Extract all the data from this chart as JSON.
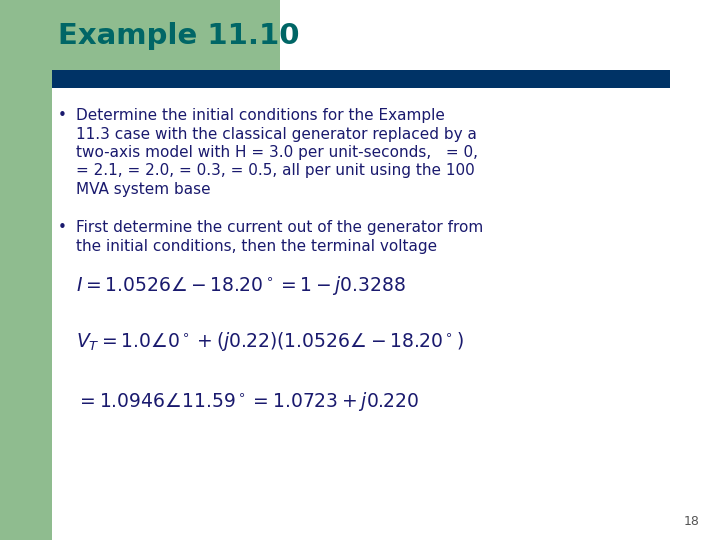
{
  "title": "Example 11.10",
  "title_color": "#006666",
  "title_bg_color": "#8FBC8F",
  "bar_color": "#003366",
  "bg_color": "#FFFFFF",
  "left_bar_color": "#8FBC8F",
  "bullet1_lines": [
    "Determine the initial conditions for the Example",
    "11.3 case with the classical generator replaced by a",
    "two-axis model with H = 3.0 per unit-seconds,   = 0,",
    "= 2.1, = 2.0, = 0.3, = 0.5, all per unit using the 100",
    "MVA system base"
  ],
  "bullet2_lines": [
    "First determine the current out of the generator from",
    "the initial conditions, then the terminal voltage"
  ],
  "eq1": "$I=1.0526\\angle -18.20^\\circ=1-j0.3288$",
  "eq2": "$V_T=1.0\\angle 0^\\circ+(j0.22)(1.0526\\angle -18.20^\\circ)$",
  "eq3": "$=1.0946\\angle 11.59^\\circ=1.0723+j0.220$",
  "page_num": "18",
  "text_color": "#1a1a6e",
  "eq_color": "#1a1a6e"
}
